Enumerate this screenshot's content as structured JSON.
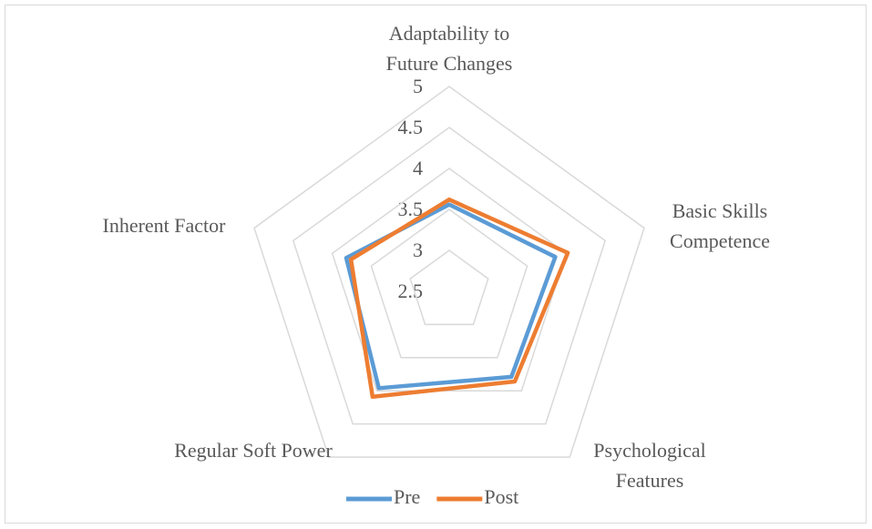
{
  "chart_data": {
    "type": "radar",
    "categories": [
      "Adaptability to Future Changes",
      "Basic Skills Competence",
      "Psychological Features",
      "Regular Soft Power",
      "Inherent Factor"
    ],
    "series": [
      {
        "name": "Pre",
        "color": "#5b9bd5",
        "values": [
          3.56,
          3.86,
          3.79,
          3.96,
          3.82
        ]
      },
      {
        "name": "Post",
        "color": "#ed7d31",
        "values": [
          3.62,
          4.02,
          3.86,
          4.09,
          3.76
        ]
      }
    ],
    "ylim": [
      2.5,
      5
    ],
    "yticks": [
      2.5,
      3,
      3.5,
      4,
      4.5,
      5
    ],
    "grid": true,
    "legend": "bottom"
  }
}
